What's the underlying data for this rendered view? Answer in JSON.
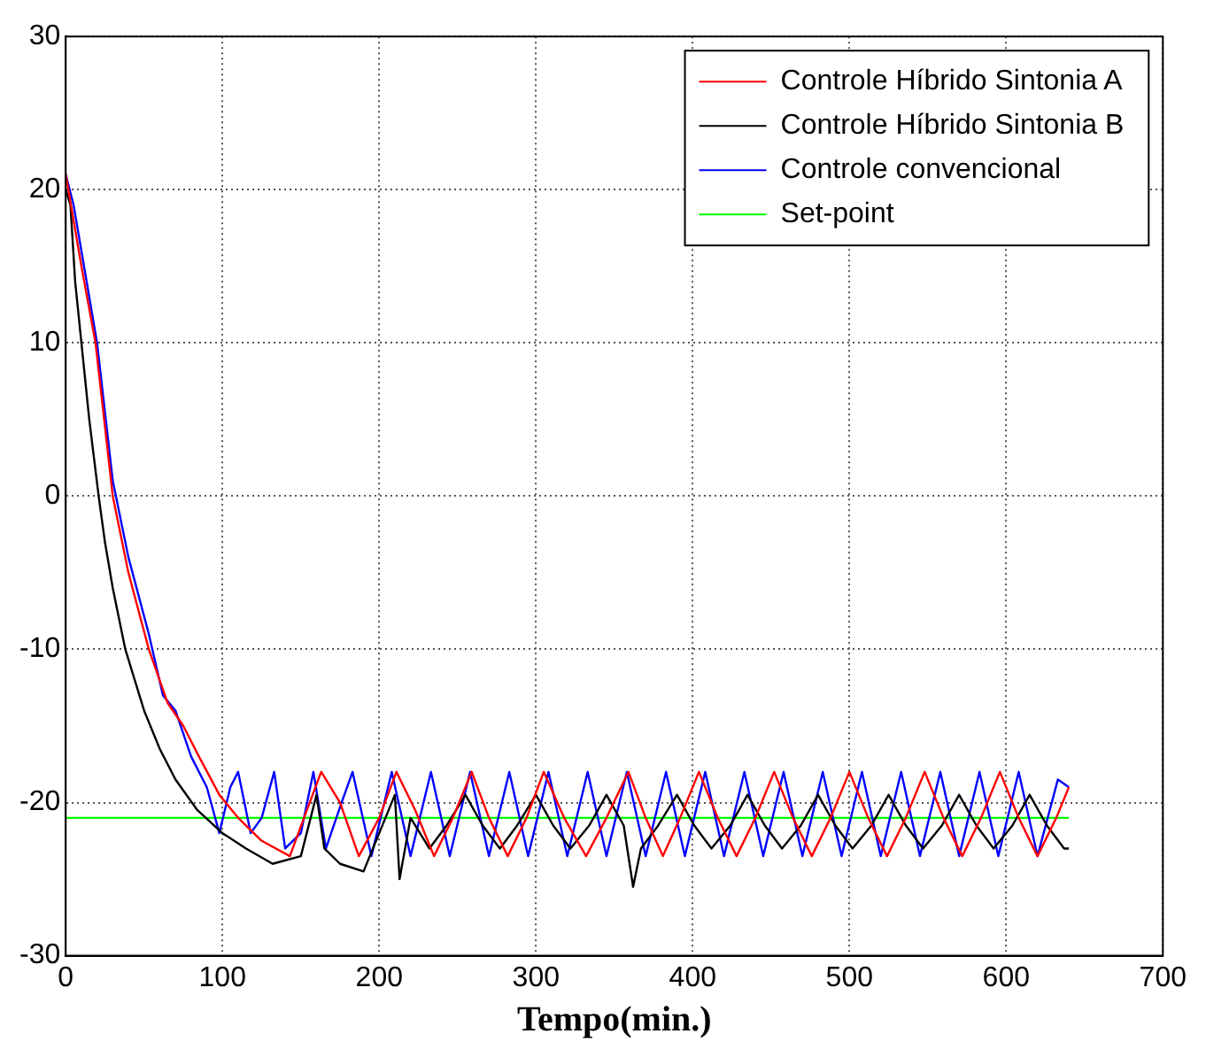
{
  "chart_data": {
    "type": "line",
    "xlabel": "Tempo(min.)",
    "xlim": [
      0,
      700
    ],
    "xticks": [
      0,
      100,
      200,
      300,
      400,
      500,
      600,
      700
    ],
    "ylim": [
      -30,
      30
    ],
    "yticks": [
      -30,
      -20,
      -10,
      0,
      10,
      20,
      30
    ],
    "grid": true,
    "legend": "top right",
    "marker": "none",
    "line_style": "solid",
    "series": [
      {
        "name": "Controle Híbrido Sintonia A",
        "color": "#ff0000",
        "x": [
          0,
          5,
          10,
          19,
          30,
          40,
          53,
          65,
          75,
          85,
          98,
          110,
          125,
          143,
          152,
          163,
          175,
          187,
          200,
          211,
          223,
          235,
          247,
          259,
          270,
          282,
          294,
          305,
          318,
          332,
          345,
          359,
          370,
          381,
          392,
          404,
          416,
          428,
          440,
          452,
          464,
          476,
          488,
          500,
          512,
          524,
          536,
          548,
          560,
          572,
          584,
          596,
          608,
          620,
          632,
          640
        ],
        "values": [
          21,
          18,
          15,
          10,
          0,
          -5,
          -10,
          -13.5,
          -15,
          -17,
          -19.5,
          -21,
          -22.5,
          -23.5,
          -21,
          -18,
          -20,
          -23.5,
          -21,
          -18,
          -20.5,
          -23.5,
          -21,
          -18,
          -21,
          -23.5,
          -21,
          -18,
          -21,
          -23.5,
          -21,
          -18,
          -21,
          -23.5,
          -21,
          -18,
          -21,
          -23.5,
          -21,
          -18,
          -21,
          -23.5,
          -21,
          -18,
          -21,
          -23.5,
          -21,
          -18,
          -21,
          -23.5,
          -21,
          -18,
          -21,
          -23.5,
          -21,
          -19
        ]
      },
      {
        "name": "Controle Híbrido Sintonia B",
        "color": "#000000",
        "x": [
          0,
          3,
          6,
          10,
          15,
          21,
          25,
          30,
          38,
          50,
          60,
          70,
          84,
          100,
          115,
          132,
          150,
          160,
          165,
          175,
          190,
          200,
          210,
          213,
          220,
          232,
          243,
          255,
          266,
          277,
          288,
          300,
          311,
          322,
          334,
          345,
          356,
          362,
          367,
          378,
          390,
          401,
          412,
          424,
          435,
          446,
          457,
          469,
          480,
          491,
          502,
          514,
          525,
          536,
          547,
          559,
          570,
          581,
          592,
          604,
          615,
          626,
          637,
          640
        ],
        "values": [
          20,
          19,
          14,
          10,
          5,
          0,
          -3,
          -6,
          -10,
          -14,
          -16.5,
          -18.5,
          -20.5,
          -22,
          -23,
          -24,
          -23.5,
          -19.5,
          -23,
          -24,
          -24.5,
          -22,
          -19.5,
          -25,
          -21,
          -23,
          -21.5,
          -19.5,
          -21.5,
          -23,
          -21.5,
          -19.5,
          -21.5,
          -23,
          -21.5,
          -19.5,
          -21.5,
          -25.5,
          -23,
          -21.5,
          -19.5,
          -21.5,
          -23,
          -21.5,
          -19.5,
          -21.5,
          -23,
          -21.5,
          -19.5,
          -21.5,
          -23,
          -21.5,
          -19.5,
          -21.5,
          -23,
          -21.5,
          -19.5,
          -21.5,
          -23,
          -21.5,
          -19.5,
          -21.5,
          -23,
          -23
        ]
      },
      {
        "name": "Controle convencional",
        "color": "#0000ff",
        "x": [
          0,
          5,
          10,
          20,
          30,
          40,
          53,
          62,
          70,
          80,
          90,
          98,
          105,
          110,
          118,
          125,
          133,
          140,
          150,
          158,
          166,
          176,
          183,
          195,
          208,
          220,
          233,
          245,
          258,
          270,
          283,
          295,
          308,
          320,
          333,
          345,
          358,
          370,
          383,
          395,
          408,
          420,
          433,
          445,
          458,
          470,
          483,
          495,
          508,
          520,
          533,
          545,
          558,
          570,
          583,
          595,
          608,
          620,
          633,
          640
        ],
        "values": [
          21,
          19,
          16,
          10,
          1,
          -4,
          -9,
          -13,
          -14,
          -17,
          -19,
          -22,
          -19,
          -18,
          -22,
          -21,
          -18,
          -23,
          -22,
          -18,
          -23,
          -20,
          -18,
          -23.5,
          -18,
          -23.5,
          -18,
          -23.5,
          -18,
          -23.5,
          -18,
          -23.5,
          -18,
          -23.5,
          -18,
          -23.5,
          -18,
          -23.5,
          -18,
          -23.5,
          -18,
          -23.5,
          -18,
          -23.5,
          -18,
          -23.5,
          -18,
          -23.5,
          -18,
          -23.5,
          -18,
          -23.5,
          -18,
          -23.5,
          -18,
          -23.5,
          -18,
          -23.5,
          -18.5,
          -19
        ]
      },
      {
        "name": "Set-point",
        "color": "#00ff00",
        "x": [
          0,
          640
        ],
        "values": [
          -21,
          -21
        ]
      }
    ]
  }
}
